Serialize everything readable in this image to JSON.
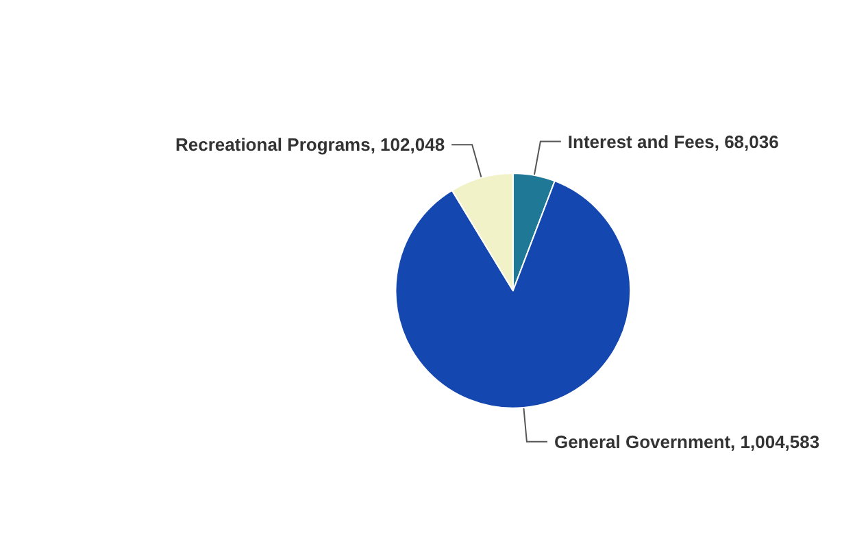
{
  "chart_data": {
    "type": "pie",
    "categories": [
      "Interest and Fees",
      "General Government",
      "Recreational Programs"
    ],
    "values": [
      68036,
      1004583,
      102048
    ],
    "value_labels": [
      "68,036",
      "1,004,583",
      "102,048"
    ],
    "colors": [
      "#1e7896",
      "#1448b0",
      "#f2f2c8"
    ]
  }
}
